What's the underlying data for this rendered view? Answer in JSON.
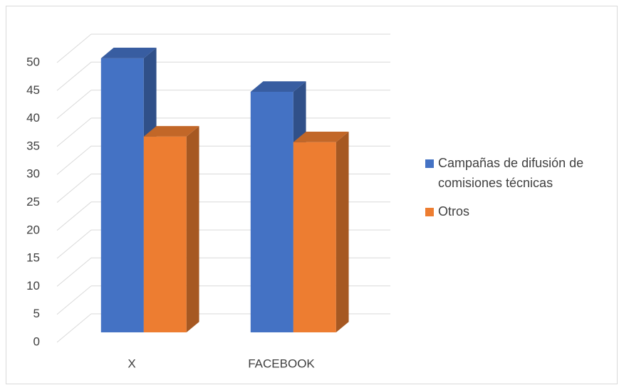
{
  "chart_data": {
    "type": "bar3d",
    "categories": [
      "X",
      "FACEBOOK"
    ],
    "series": [
      {
        "name": "Campañas de difusión de comisiones técnicas",
        "color": "#4472c4",
        "values": [
          49,
          43
        ]
      },
      {
        "name": "Otros",
        "color": "#ed7d31",
        "values": [
          35,
          34
        ]
      }
    ],
    "ylim": [
      0,
      50
    ],
    "yticks": [
      0,
      5,
      10,
      15,
      20,
      25,
      30,
      35,
      40,
      45,
      50
    ],
    "grid": true,
    "legend": "right"
  }
}
